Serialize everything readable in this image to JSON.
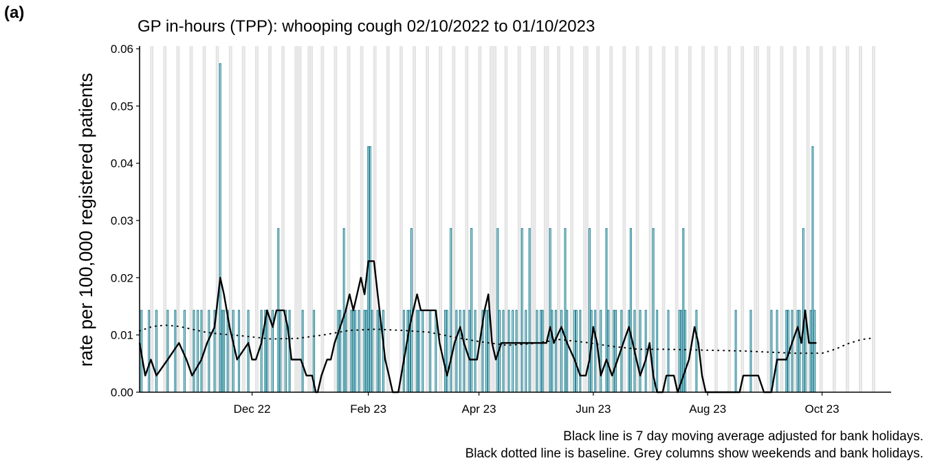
{
  "chart_data": {
    "type": "bar",
    "panel_label": "(a)",
    "title": "GP in-hours (TPP): whooping cough 02/10/2022 to 01/10/2023",
    "ylabel": "rate per 100,000 registered patients",
    "notes": [
      "Black line is 7 day moving average adjusted for bank holidays.",
      "Black dotted line is baseline. Grey columns show weekends and bank holidays."
    ],
    "xlim": [
      0,
      399
    ],
    "ylim": [
      0,
      0.06
    ],
    "xticks": [
      {
        "value": 60,
        "label": "Dec 22"
      },
      {
        "value": 122,
        "label": "Feb 23"
      },
      {
        "value": 181,
        "label": "Apr 23"
      },
      {
        "value": 242,
        "label": "Jun 23"
      },
      {
        "value": 303,
        "label": "Aug 23"
      },
      {
        "value": 364,
        "label": "Oct 23"
      }
    ],
    "yticks": [
      {
        "value": 0,
        "label": "0.00"
      },
      {
        "value": 0.01,
        "label": "0.01"
      },
      {
        "value": 0.02,
        "label": "0.02"
      },
      {
        "value": 0.03,
        "label": "0.03"
      },
      {
        "value": 0.04,
        "label": "0.04"
      },
      {
        "value": 0.05,
        "label": "0.05"
      },
      {
        "value": 0.06,
        "label": "0.06"
      }
    ],
    "shade_color": "#e3e3e3",
    "shaded_days": [
      0,
      6,
      7,
      13,
      14,
      20,
      21,
      27,
      28,
      34,
      35,
      41,
      42,
      48,
      49,
      55,
      56,
      62,
      63,
      69,
      70,
      76,
      77,
      83,
      84,
      85,
      86,
      90,
      91,
      92,
      97,
      98,
      104,
      105,
      111,
      112,
      118,
      119,
      125,
      126,
      132,
      133,
      139,
      140,
      146,
      147,
      153,
      154,
      160,
      161,
      167,
      168,
      174,
      175,
      181,
      182,
      187,
      188,
      189,
      190,
      195,
      196,
      202,
      203,
      209,
      210,
      211,
      216,
      217,
      218,
      223,
      224,
      230,
      231,
      237,
      238,
      239,
      244,
      245,
      251,
      252,
      258,
      259,
      265,
      266,
      272,
      273,
      279,
      280,
      286,
      287,
      293,
      294,
      300,
      301,
      307,
      308,
      314,
      315,
      321,
      322,
      328,
      329,
      330,
      335,
      336,
      342,
      343,
      349,
      350,
      356,
      357,
      363,
      364,
      370,
      371,
      377,
      378,
      384,
      385,
      391,
      392
    ],
    "series": [
      {
        "type": "bar",
        "color": "#1a7f91",
        "x": [
          0,
          1,
          2,
          3,
          4,
          5,
          6,
          7,
          8,
          9,
          10,
          11,
          12,
          13,
          14,
          15,
          16,
          17,
          18,
          19,
          20,
          21,
          22,
          23,
          24,
          25,
          26,
          27,
          28,
          29,
          30,
          31,
          32,
          33,
          34,
          35,
          36,
          37,
          38,
          39,
          40,
          41,
          42,
          43,
          44,
          45,
          46,
          47,
          48,
          49,
          50,
          51,
          52,
          53,
          54,
          55,
          56,
          57,
          58,
          59,
          60,
          61,
          62,
          63,
          64,
          65,
          66,
          67,
          68,
          69,
          70,
          71,
          72,
          73,
          74,
          75,
          76,
          77,
          78,
          79,
          80,
          81,
          82,
          83,
          84,
          85,
          86,
          87,
          88,
          89,
          90,
          91,
          92,
          93,
          94,
          95,
          96,
          97,
          98,
          99,
          100,
          101,
          102,
          103,
          104,
          105,
          106,
          107,
          108,
          109,
          110,
          111,
          112,
          113,
          114,
          115,
          116,
          117,
          118,
          119,
          120,
          121,
          122,
          123,
          124,
          125,
          126,
          127,
          128,
          129,
          130,
          131,
          132,
          133,
          134,
          135,
          136,
          137,
          138,
          139,
          140,
          141,
          142,
          143,
          144,
          145,
          146,
          147,
          148,
          149,
          150,
          151,
          152,
          153,
          154,
          155,
          156,
          157,
          158,
          159,
          160,
          161,
          162,
          163,
          164,
          165,
          166,
          167,
          168,
          169,
          170,
          171,
          172,
          173,
          174,
          175,
          176,
          177,
          178,
          179,
          180,
          181,
          182,
          183,
          184,
          185,
          186,
          187,
          188,
          189,
          190,
          191,
          192,
          193,
          194,
          195,
          196,
          197,
          198,
          199,
          200,
          201,
          202,
          203,
          204,
          205,
          206,
          207,
          208,
          209,
          210,
          211,
          212,
          213,
          214,
          215,
          216,
          217,
          218,
          219,
          220,
          221,
          222,
          223,
          224,
          225,
          226,
          227,
          228,
          229,
          230,
          231,
          232,
          233,
          234,
          235,
          236,
          237,
          238,
          239,
          240,
          241,
          242,
          243,
          244,
          245,
          246,
          247,
          248,
          249,
          250,
          251,
          252,
          253,
          254,
          255,
          256,
          257,
          258,
          259,
          260,
          261,
          262,
          263,
          264,
          265,
          266,
          267,
          268,
          269,
          270,
          271,
          272,
          273,
          274,
          275,
          276,
          277,
          278,
          279,
          280,
          281,
          282,
          283,
          284,
          285,
          286,
          287,
          288,
          289,
          290,
          291,
          292,
          293,
          294,
          295,
          296,
          297,
          298,
          299,
          300,
          301,
          302,
          303,
          304,
          305,
          306,
          307,
          308,
          309,
          310,
          311,
          312,
          313,
          314,
          315,
          316,
          317,
          318,
          319,
          320,
          321,
          322,
          323,
          324,
          325,
          326,
          327,
          328,
          329,
          330,
          331,
          332,
          333,
          334,
          335,
          336,
          337,
          338,
          339,
          340,
          341,
          342,
          343,
          344,
          345,
          346,
          347,
          348,
          349,
          350,
          351,
          352,
          353,
          354,
          355,
          356,
          357,
          358,
          359,
          360,
          361,
          362,
          363,
          364
        ],
        "values": [
          0,
          0.0143,
          0,
          0,
          0,
          0.0143,
          0,
          0,
          0,
          0.0143,
          0,
          0,
          0,
          0,
          0,
          0.0143,
          0,
          0,
          0,
          0.0143,
          0,
          0,
          0,
          0,
          0.0143,
          0,
          0,
          0,
          0,
          0.0143,
          0,
          0.0143,
          0,
          0.0143,
          0,
          0,
          0,
          0.0143,
          0,
          0,
          0.0143,
          0,
          0,
          0.0574,
          0.0143,
          0.0143,
          0,
          0.0143,
          0,
          0,
          0.0143,
          0,
          0,
          0.0143,
          0,
          0,
          0,
          0,
          0.0143,
          0,
          0,
          0,
          0,
          0,
          0,
          0.0143,
          0,
          0.0143,
          0.0143,
          0,
          0,
          0.0143,
          0,
          0,
          0.0286,
          0.0143,
          0,
          0,
          0.0143,
          0,
          0.0143,
          0,
          0,
          0,
          0,
          0,
          0,
          0.0143,
          0,
          0,
          0,
          0,
          0,
          0.0143,
          0,
          0,
          0,
          0,
          0,
          0,
          0,
          0,
          0,
          0,
          0,
          0,
          0.0143,
          0.0143,
          0,
          0.0286,
          0.0143,
          0,
          0,
          0.0143,
          0.0143,
          0.0143,
          0,
          0.0143,
          0,
          0,
          0.0143,
          0.0143,
          0.0429,
          0.0429,
          0.0143,
          0,
          0,
          0.0143,
          0.0143,
          0,
          0.0143,
          0,
          0,
          0,
          0,
          0,
          0,
          0,
          0,
          0,
          0,
          0.0143,
          0,
          0.0143,
          0.0143,
          0.0286,
          0,
          0,
          0.0143,
          0.0143,
          0,
          0.0143,
          0,
          0,
          0,
          0.0143,
          0,
          0,
          0.0143,
          0,
          0,
          0,
          0,
          0.0143,
          0.0143,
          0,
          0.0286,
          0,
          0,
          0.0143,
          0,
          0.0143,
          0,
          0.0143,
          0,
          0,
          0.0143,
          0.0286,
          0,
          0.0143,
          0,
          0,
          0,
          0.0143,
          0,
          0.0143,
          0.0143,
          0,
          0,
          0,
          0,
          0.0286,
          0.0143,
          0,
          0.0143,
          0,
          0,
          0.0143,
          0,
          0.0143,
          0,
          0.0143,
          0,
          0,
          0.0286,
          0,
          0.0143,
          0,
          0.0286,
          0,
          0,
          0,
          0.0143,
          0,
          0.0143,
          0.0143,
          0,
          0,
          0,
          0.0286,
          0.0143,
          0,
          0.0143,
          0,
          0,
          0.0143,
          0,
          0.0286,
          0.0143,
          0,
          0,
          0,
          0.0143,
          0.0143,
          0,
          0.0143,
          0,
          0,
          0,
          0,
          0.0286,
          0.0143,
          0,
          0.0143,
          0,
          0,
          0.0143,
          0,
          0,
          0.0286,
          0.0143,
          0,
          0,
          0.0143,
          0.0143,
          0,
          0,
          0.0143,
          0,
          0,
          0,
          0.0143,
          0.0286,
          0,
          0.0143,
          0,
          0,
          0.0143,
          0,
          0,
          0.0143,
          0,
          0,
          0,
          0.0286,
          0,
          0.0143,
          0,
          0,
          0,
          0,
          0,
          0.0143,
          0,
          0,
          0,
          0,
          0,
          0.0143,
          0.0143,
          0.0286,
          0.0143,
          0,
          0,
          0,
          0,
          0,
          0.0143,
          0,
          0,
          0,
          0,
          0,
          0,
          0,
          0,
          0,
          0,
          0,
          0,
          0,
          0,
          0,
          0,
          0,
          0,
          0,
          0,
          0.0143,
          0,
          0,
          0,
          0,
          0,
          0,
          0,
          0.0143,
          0,
          0,
          0,
          0,
          0,
          0,
          0,
          0,
          0,
          0,
          0.0143,
          0,
          0,
          0.0143,
          0,
          0,
          0,
          0,
          0.0143,
          0.0143,
          0,
          0.0143,
          0,
          0,
          0.0143,
          0.0143,
          0,
          0.0286,
          0.0143,
          0,
          0,
          0.0143,
          0.0429,
          0.0143,
          0,
          0,
          0,
          0
        ]
      },
      {
        "type": "line",
        "color": "#000000",
        "x": [
          0,
          3,
          6,
          9,
          15,
          21,
          25,
          28,
          33,
          36,
          40,
          42,
          43,
          45,
          48,
          50,
          52,
          58,
          60,
          62,
          65,
          68,
          71,
          73,
          77,
          79,
          81,
          86,
          89,
          92,
          94,
          95,
          97,
          100,
          102,
          104,
          107,
          110,
          112,
          114,
          116,
          118,
          120,
          122,
          125,
          127,
          129,
          131,
          133,
          135,
          138,
          141,
          144,
          146,
          148,
          150,
          154,
          158,
          160,
          162,
          164,
          166,
          168,
          171,
          173,
          176,
          180,
          184,
          186,
          188,
          190,
          193,
          197,
          204,
          210,
          217,
          219,
          221,
          225,
          228,
          232,
          235,
          238,
          240,
          242,
          244,
          246,
          249,
          252,
          255,
          258,
          261,
          263,
          265,
          267,
          270,
          272,
          274,
          276,
          279,
          281,
          285,
          287,
          293,
          296,
          298,
          300,
          302,
          320,
          322,
          330,
          333,
          337,
          340,
          345,
          348,
          351,
          353,
          355,
          357,
          361
        ],
        "values": [
          0.0086,
          0.0029,
          0.0057,
          0.0029,
          0.0057,
          0.0086,
          0.0057,
          0.0029,
          0.0057,
          0.0086,
          0.0114,
          0.0171,
          0.02,
          0.0171,
          0.0114,
          0.0086,
          0.0057,
          0.0086,
          0.0057,
          0.0057,
          0.0086,
          0.0143,
          0.0114,
          0.0143,
          0.0143,
          0.0114,
          0.0057,
          0.0057,
          0.0029,
          0.0029,
          0,
          0,
          0.0029,
          0.0057,
          0.0057,
          0.0086,
          0.0114,
          0.0143,
          0.0171,
          0.0143,
          0.0171,
          0.02,
          0.0171,
          0.0229,
          0.0229,
          0.0171,
          0.0114,
          0.0057,
          0.0029,
          0,
          0,
          0.0057,
          0.0114,
          0.0143,
          0.0171,
          0.0143,
          0.0143,
          0.0143,
          0.0086,
          0.0057,
          0.0029,
          0.0057,
          0.0086,
          0.0114,
          0.0086,
          0.0057,
          0.0057,
          0.0143,
          0.0171,
          0.0086,
          0.0057,
          0.0086,
          0.0086,
          0.0086,
          0.0086,
          0.0086,
          0.0114,
          0.0086,
          0.0114,
          0.0086,
          0.0057,
          0.0029,
          0.0029,
          0.0057,
          0.0114,
          0.0086,
          0.0029,
          0.0057,
          0.0029,
          0.0057,
          0.0086,
          0.0114,
          0.0086,
          0.0057,
          0.0029,
          0.0057,
          0.0086,
          0.0029,
          0,
          0,
          0.0029,
          0.0029,
          0,
          0.0057,
          0.0114,
          0.0086,
          0.0029,
          0,
          0,
          0.0029,
          0.0029,
          0,
          0,
          0.0057,
          0.0057,
          0.0086,
          0.0114,
          0.0086,
          0.0143,
          0.0086,
          0.0086
        ]
      },
      {
        "type": "dotted",
        "color": "#000000",
        "x": [
          0,
          7,
          14,
          21,
          28,
          35,
          42,
          56,
          70,
          84,
          98,
          112,
          126,
          140,
          154,
          168,
          182,
          196,
          210,
          224,
          238,
          252,
          266,
          280,
          294,
          308,
          322,
          336,
          350,
          364,
          371,
          378,
          385,
          392
        ],
        "values": [
          0.0107,
          0.0115,
          0.0117,
          0.0115,
          0.011,
          0.0105,
          0.0102,
          0.0098,
          0.0093,
          0.0094,
          0.01,
          0.0108,
          0.011,
          0.0108,
          0.0105,
          0.0096,
          0.0088,
          0.0082,
          0.0085,
          0.0092,
          0.0087,
          0.008,
          0.0075,
          0.0075,
          0.0074,
          0.0073,
          0.0072,
          0.007,
          0.0068,
          0.0068,
          0.0075,
          0.0085,
          0.0092,
          0.0095
        ]
      }
    ]
  }
}
